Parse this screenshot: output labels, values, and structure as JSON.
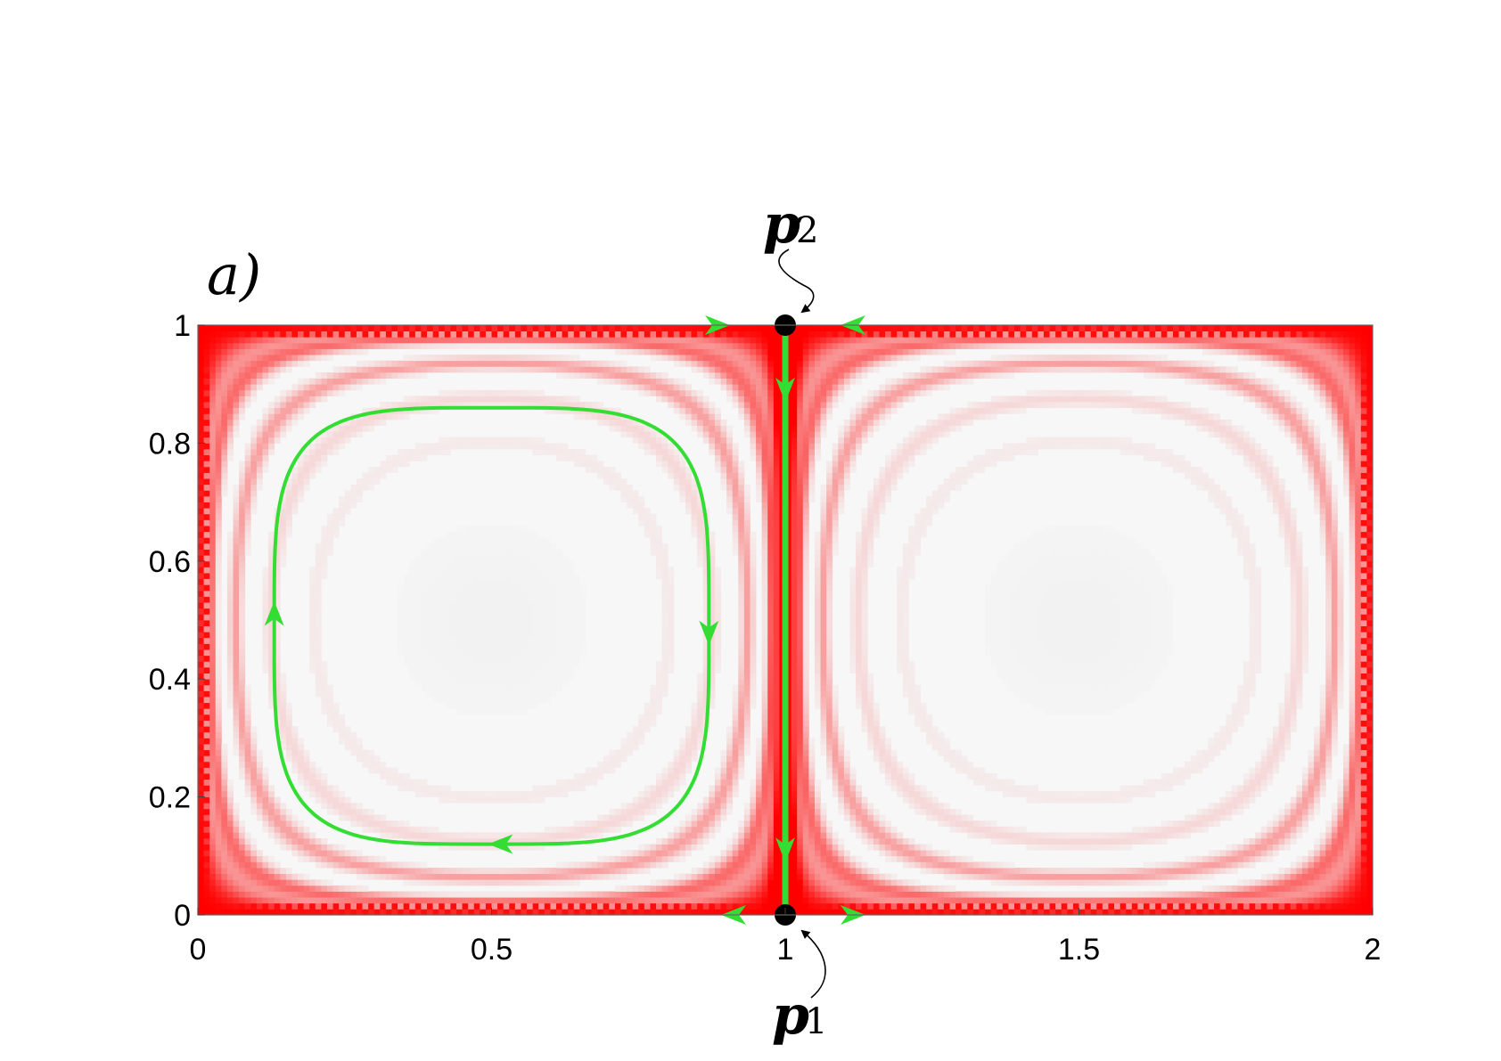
{
  "chart_data": {
    "type": "heatmap",
    "title": "",
    "panel_label": "a)",
    "xlabel": "",
    "ylabel": "",
    "xlim": [
      0,
      2
    ],
    "ylim": [
      0,
      1
    ],
    "x_ticks": [
      {
        "value": 0,
        "label": "0"
      },
      {
        "value": 0.5,
        "label": "0.5"
      },
      {
        "value": 1,
        "label": "1"
      },
      {
        "value": 1.5,
        "label": "1.5"
      },
      {
        "value": 2,
        "label": "2"
      }
    ],
    "y_ticks": [
      {
        "value": 0,
        "label": "0"
      },
      {
        "value": 0.2,
        "label": "0.2"
      },
      {
        "value": 0.4,
        "label": "0.4"
      },
      {
        "value": 0.6,
        "label": "0.6"
      },
      {
        "value": 0.8,
        "label": "0.8"
      },
      {
        "value": 1,
        "label": "1"
      }
    ],
    "grid": false,
    "colormap": {
      "low": "#f5f5f5",
      "high": "#ff0000"
    },
    "cells": {
      "center_x": [
        0.5,
        1.5
      ],
      "center_y": 0.5
    },
    "points": [
      {
        "id": "p1",
        "symbol": "p",
        "subscript": "1",
        "x": 1,
        "y": 0
      },
      {
        "id": "p2",
        "symbol": "p",
        "subscript": "2",
        "x": 1,
        "y": 1
      }
    ],
    "curves": [
      {
        "name": "closed-orbit",
        "color": "#33dd33",
        "rx": 0.37,
        "ry": 0.37,
        "center": [
          0.5,
          0.49
        ]
      },
      {
        "name": "separatrix",
        "color": "#33dd33",
        "from": [
          1,
          1
        ],
        "to": [
          1,
          0
        ]
      }
    ],
    "colors": {
      "orbit": "#33dd33",
      "ridge": "#ee1111",
      "point": "#000000"
    }
  }
}
